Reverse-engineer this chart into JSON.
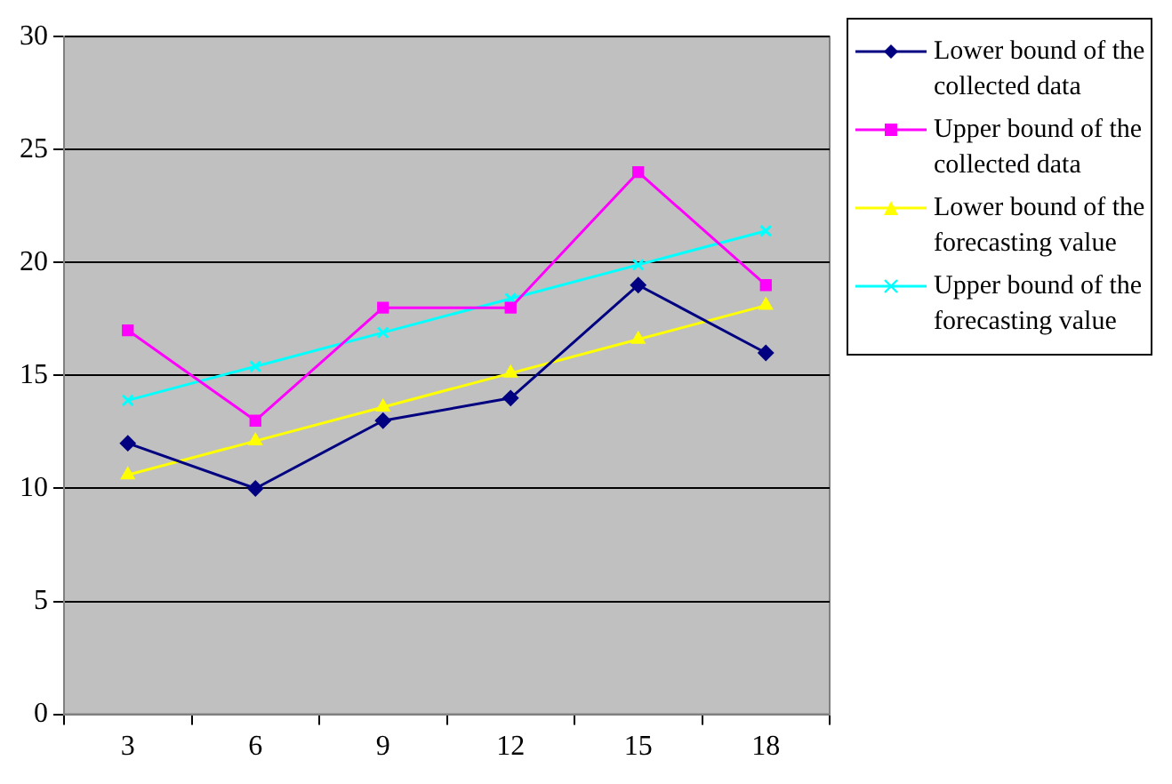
{
  "chart_data": {
    "type": "line",
    "categories": [
      "3",
      "6",
      "9",
      "12",
      "15",
      "18"
    ],
    "ylim": [
      0,
      30
    ],
    "yticks": [
      0,
      5,
      10,
      15,
      20,
      25,
      30
    ],
    "grid": "y",
    "legend": "right",
    "series": [
      {
        "name": "Lower bound of the collected data",
        "color": "#000080",
        "marker": "diamond",
        "values": [
          12,
          10,
          13,
          14,
          19,
          16
        ]
      },
      {
        "name": "Upper bound of the collected data",
        "color": "#ff00ff",
        "marker": "square",
        "values": [
          17,
          13,
          18,
          18,
          24,
          19
        ]
      },
      {
        "name": "Lower bound of the forecasting value",
        "color": "#ffff00",
        "marker": "triangle",
        "values": [
          10.6,
          12.1,
          13.6,
          15.1,
          16.6,
          18.1
        ]
      },
      {
        "name": "Upper bound of the forecasting value",
        "color": "#00ffff",
        "marker": "cross",
        "values": [
          13.9,
          15.4,
          16.9,
          18.4,
          19.9,
          21.4
        ]
      }
    ]
  }
}
